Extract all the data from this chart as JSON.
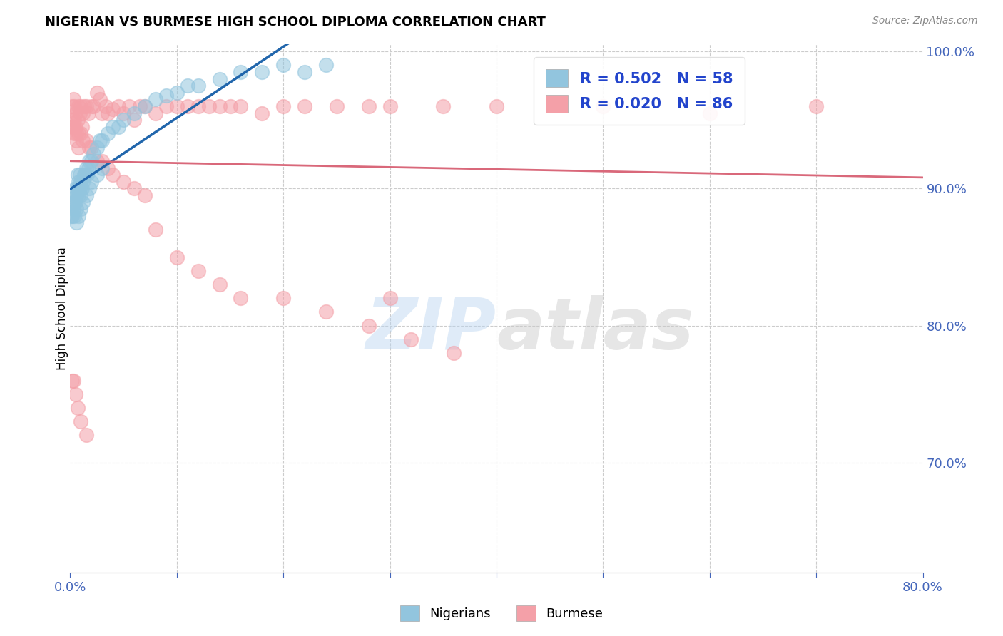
{
  "title": "NIGERIAN VS BURMESE HIGH SCHOOL DIPLOMA CORRELATION CHART",
  "source": "Source: ZipAtlas.com",
  "ylabel": "High School Diploma",
  "xlim": [
    0.0,
    0.8
  ],
  "ylim": [
    0.62,
    1.005
  ],
  "nigerian_color": "#92c5de",
  "burmese_color": "#f4a0a8",
  "nigerian_line_color": "#2166ac",
  "burmese_line_color": "#d9687a",
  "watermark_zip": "ZIP",
  "watermark_atlas": "atlas",
  "nigerian_x": [
    0.001,
    0.002,
    0.002,
    0.003,
    0.003,
    0.004,
    0.004,
    0.005,
    0.005,
    0.006,
    0.006,
    0.007,
    0.007,
    0.008,
    0.008,
    0.009,
    0.009,
    0.01,
    0.01,
    0.011,
    0.012,
    0.013,
    0.014,
    0.015,
    0.016,
    0.017,
    0.018,
    0.02,
    0.022,
    0.025,
    0.028,
    0.03,
    0.035,
    0.04,
    0.045,
    0.05,
    0.06,
    0.07,
    0.08,
    0.09,
    0.1,
    0.11,
    0.12,
    0.14,
    0.16,
    0.18,
    0.2,
    0.22,
    0.24,
    0.006,
    0.008,
    0.01,
    0.012,
    0.015,
    0.018,
    0.02,
    0.025,
    0.03
  ],
  "nigerian_y": [
    0.88,
    0.88,
    0.89,
    0.885,
    0.895,
    0.88,
    0.89,
    0.89,
    0.9,
    0.885,
    0.895,
    0.9,
    0.91,
    0.895,
    0.905,
    0.9,
    0.91,
    0.895,
    0.905,
    0.9,
    0.905,
    0.91,
    0.91,
    0.915,
    0.91,
    0.915,
    0.92,
    0.92,
    0.925,
    0.93,
    0.935,
    0.935,
    0.94,
    0.945,
    0.945,
    0.95,
    0.955,
    0.96,
    0.965,
    0.968,
    0.97,
    0.975,
    0.975,
    0.98,
    0.985,
    0.985,
    0.99,
    0.985,
    0.99,
    0.875,
    0.88,
    0.885,
    0.89,
    0.895,
    0.9,
    0.905,
    0.91,
    0.915
  ],
  "burmese_x": [
    0.001,
    0.002,
    0.002,
    0.003,
    0.003,
    0.004,
    0.004,
    0.005,
    0.005,
    0.006,
    0.007,
    0.008,
    0.008,
    0.009,
    0.01,
    0.011,
    0.012,
    0.013,
    0.015,
    0.017,
    0.02,
    0.022,
    0.025,
    0.028,
    0.03,
    0.033,
    0.035,
    0.04,
    0.045,
    0.05,
    0.055,
    0.06,
    0.065,
    0.07,
    0.08,
    0.09,
    0.1,
    0.11,
    0.12,
    0.13,
    0.14,
    0.15,
    0.16,
    0.18,
    0.2,
    0.22,
    0.25,
    0.28,
    0.3,
    0.35,
    0.4,
    0.5,
    0.6,
    0.7,
    0.004,
    0.006,
    0.008,
    0.01,
    0.012,
    0.015,
    0.018,
    0.02,
    0.025,
    0.03,
    0.035,
    0.04,
    0.05,
    0.06,
    0.07,
    0.08,
    0.1,
    0.12,
    0.14,
    0.16,
    0.2,
    0.24,
    0.28,
    0.32,
    0.36,
    0.3,
    0.002,
    0.003,
    0.005,
    0.007,
    0.01,
    0.015
  ],
  "burmese_y": [
    0.945,
    0.95,
    0.96,
    0.945,
    0.965,
    0.95,
    0.96,
    0.945,
    0.955,
    0.94,
    0.95,
    0.96,
    0.94,
    0.955,
    0.96,
    0.945,
    0.955,
    0.96,
    0.96,
    0.955,
    0.96,
    0.96,
    0.97,
    0.965,
    0.955,
    0.96,
    0.955,
    0.958,
    0.96,
    0.955,
    0.96,
    0.95,
    0.96,
    0.96,
    0.955,
    0.96,
    0.96,
    0.96,
    0.96,
    0.96,
    0.96,
    0.96,
    0.96,
    0.955,
    0.96,
    0.96,
    0.96,
    0.96,
    0.96,
    0.96,
    0.96,
    0.96,
    0.955,
    0.96,
    0.94,
    0.935,
    0.93,
    0.94,
    0.935,
    0.935,
    0.93,
    0.93,
    0.92,
    0.92,
    0.915,
    0.91,
    0.905,
    0.9,
    0.895,
    0.87,
    0.85,
    0.84,
    0.83,
    0.82,
    0.82,
    0.81,
    0.8,
    0.79,
    0.78,
    0.82,
    0.76,
    0.76,
    0.75,
    0.74,
    0.73,
    0.72
  ]
}
